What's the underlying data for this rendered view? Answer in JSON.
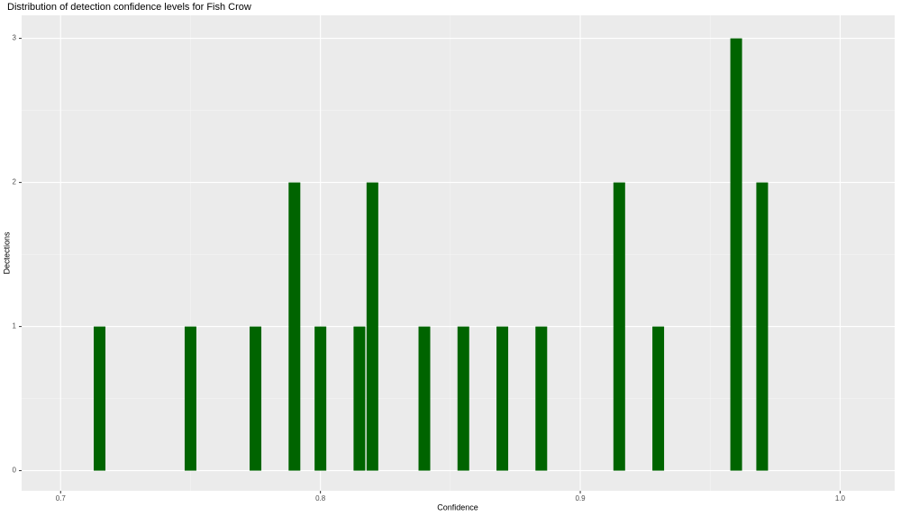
{
  "chart_data": {
    "type": "bar",
    "title": "Distribution of detection confidence levels for Fish Crow",
    "x_label": "Confidence",
    "y_label": "Dectections",
    "x": [
      0.715,
      0.75,
      0.775,
      0.79,
      0.8,
      0.815,
      0.82,
      0.84,
      0.855,
      0.87,
      0.885,
      0.915,
      0.93,
      0.96,
      0.97
    ],
    "values": [
      1,
      1,
      1,
      2,
      1,
      1,
      2,
      1,
      1,
      1,
      1,
      2,
      1,
      3,
      2
    ],
    "color": "#006400",
    "xlim": [
      0.685,
      1.021
    ],
    "xticks": [
      0.7,
      0.8,
      0.9,
      {
        "value": 1,
        "label": "1.0"
      }
    ],
    "ylim": [
      -0.14,
      3.16
    ],
    "yticks": [
      0,
      1,
      2,
      3
    ],
    "grid": true
  }
}
